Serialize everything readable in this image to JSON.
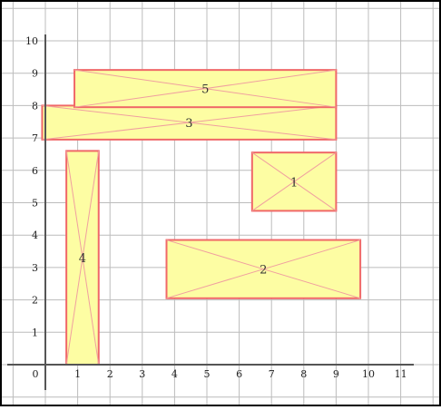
{
  "title": "",
  "x_axis": {
    "min": 0,
    "max": 11,
    "tick_labels": [
      "0",
      "1",
      "2",
      "3",
      "4",
      "5",
      "6",
      "7",
      "8",
      "9",
      "10",
      "11"
    ]
  },
  "y_axis": {
    "min": 0,
    "max": 10,
    "tick_labels": [
      "1",
      "2",
      "3",
      "4",
      "5",
      "6",
      "7",
      "8",
      "9",
      "10"
    ]
  },
  "grid": true,
  "colors": {
    "rect_fill": "#fdfda3",
    "rect_stroke": "#f06868",
    "diagonal": "#f0a0a0",
    "grid": "#bcbcbc",
    "axis": "#555555",
    "border": "#000000"
  },
  "rectangles": [
    {
      "label": "1",
      "x0": 6.4,
      "x1": 9.0,
      "y0": 4.75,
      "y1": 6.55
    },
    {
      "label": "2",
      "x0": 3.75,
      "x1": 9.75,
      "y0": 2.05,
      "y1": 3.85
    },
    {
      "label": "3",
      "x0": -0.1,
      "x1": 9.0,
      "y0": 6.95,
      "y1": 8.0
    },
    {
      "label": "4",
      "x0": 0.65,
      "x1": 1.65,
      "y0": 0.0,
      "y1": 6.6
    },
    {
      "label": "5",
      "x0": 0.9,
      "x1": 9.0,
      "y0": 7.95,
      "y1": 9.1
    }
  ]
}
